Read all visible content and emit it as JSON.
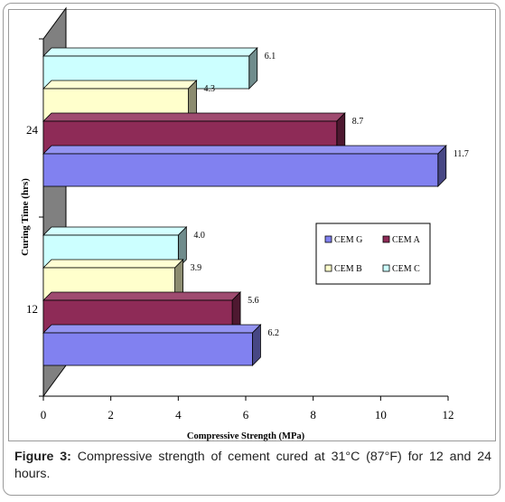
{
  "chart_data": {
    "type": "bar",
    "orientation": "horizontal",
    "style": "3d",
    "categories": [
      "12",
      "24"
    ],
    "series": [
      {
        "name": "CEM G",
        "values": [
          6.2,
          11.7
        ],
        "color": "#8181f0"
      },
      {
        "name": "CEM A",
        "values": [
          5.6,
          8.7
        ],
        "color": "#8e2b57"
      },
      {
        "name": "CEM B",
        "values": [
          3.9,
          4.3
        ],
        "color": "#ffffcc"
      },
      {
        "name": "CEM C",
        "values": [
          4.0,
          6.1
        ],
        "color": "#ccffff"
      }
    ],
    "data_labels": {
      "12": [
        "6.2",
        "5.6",
        "3.9",
        "4.0"
      ],
      "24": [
        "11.7",
        "8.7",
        "4.3",
        "6.1"
      ]
    },
    "x_ticks": [
      "0",
      "2",
      "4",
      "6",
      "8",
      "10",
      "12"
    ],
    "xlim": [
      0,
      12
    ],
    "xlabel": "Compressive Strength (MPa)",
    "ylabel": "Curing Time (hrs)",
    "grid": false,
    "legend": "right-center",
    "wall_color": "#808080"
  },
  "caption": {
    "label": "Figure 3:",
    "text": " Compressive strength of cement cured at 31°C (87°F) for 12 and 24 hours."
  }
}
